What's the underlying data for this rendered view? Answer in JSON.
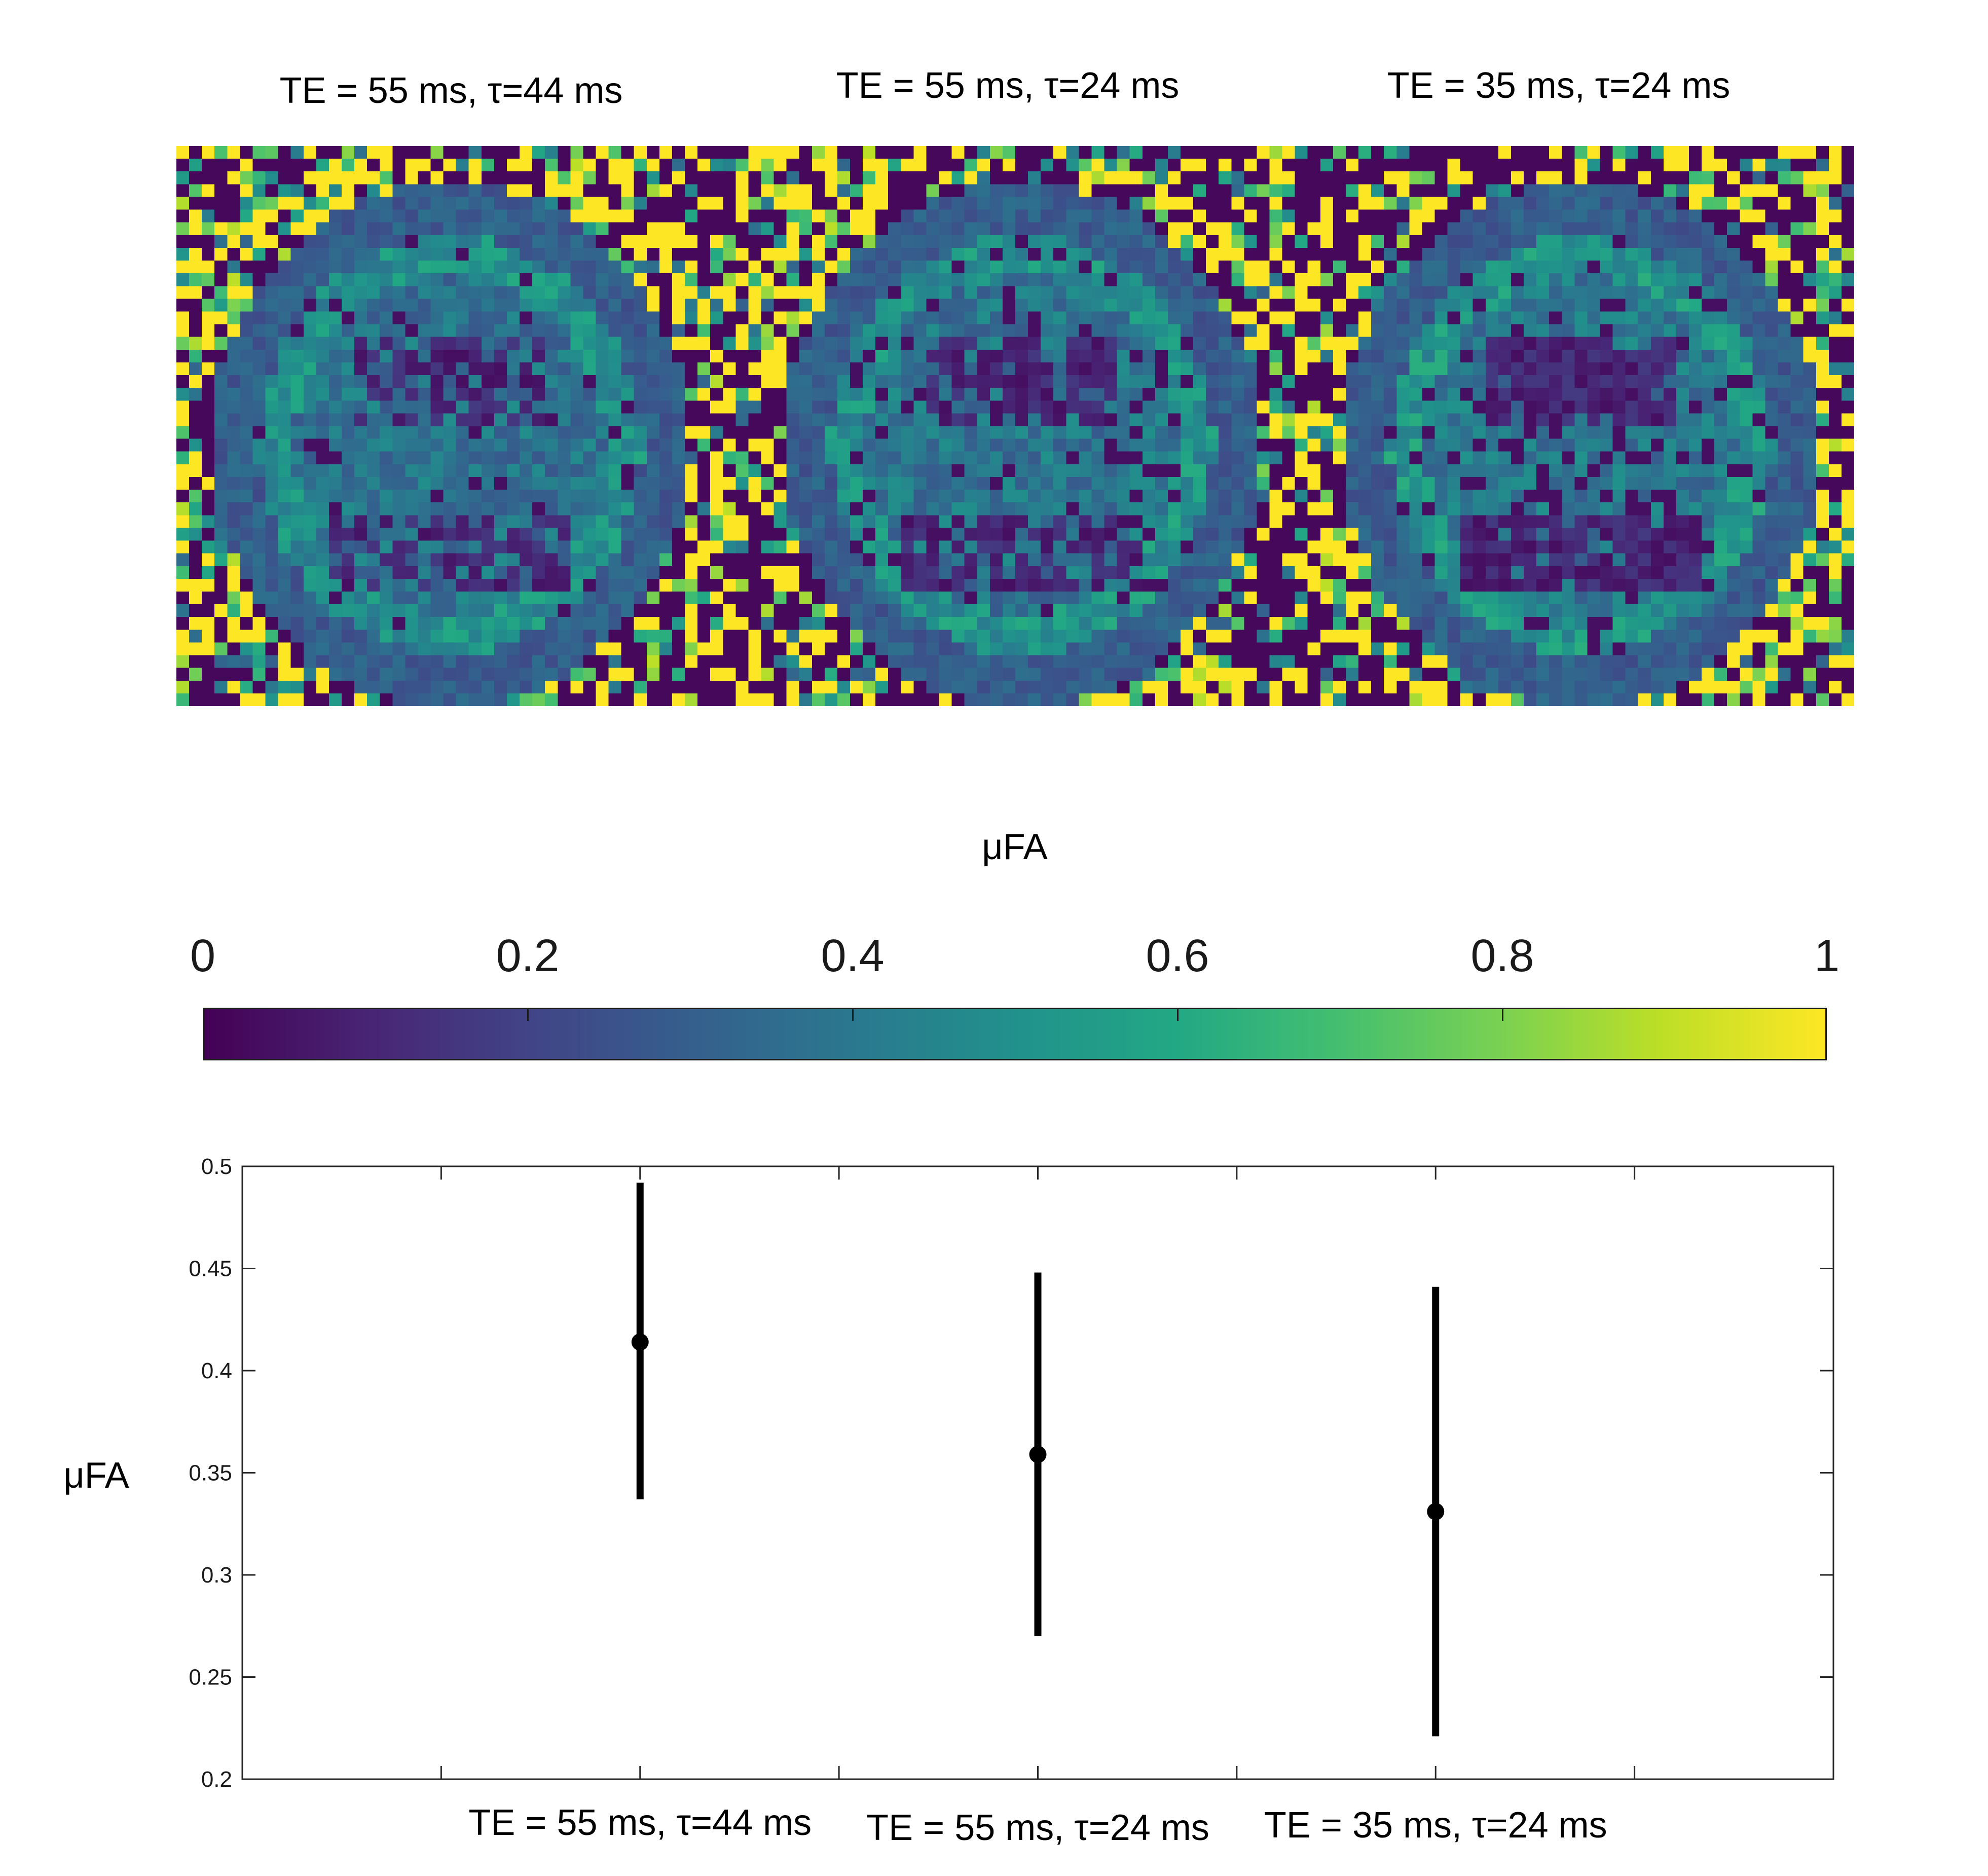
{
  "maps": {
    "titles": [
      "TE = 55 ms, τ=44 ms",
      "TE = 55 ms, τ=24 ms",
      "TE = 35 ms, τ=24 ms"
    ],
    "colormap": "viridis",
    "color_range": [
      0,
      1
    ]
  },
  "colorbar": {
    "title": "μFA",
    "ticks": [
      "0",
      "0.2",
      "0.4",
      "0.6",
      "0.8",
      "1"
    ],
    "colors": [
      "#440154",
      "#482475",
      "#414487",
      "#355f8d",
      "#2a788e",
      "#21918c",
      "#22a884",
      "#44bf70",
      "#7ad151",
      "#bddf26",
      "#fde725"
    ]
  },
  "chart_data": {
    "type": "scatter",
    "ylabel": "μFA",
    "categories": [
      "TE = 55 ms, τ=44 ms",
      "TE = 55 ms, τ=24 ms",
      "TE = 35 ms, τ=24 ms"
    ],
    "values": [
      0.414,
      0.359,
      0.331
    ],
    "error_low": [
      0.337,
      0.27,
      0.221
    ],
    "error_high": [
      0.492,
      0.448,
      0.441
    ],
    "ylim": [
      0.2,
      0.5
    ],
    "yticks": [
      "0.2",
      "0.25",
      "0.3",
      "0.35",
      "0.4",
      "0.45",
      "0.5"
    ],
    "grid": false,
    "marker_color": "#000000"
  }
}
